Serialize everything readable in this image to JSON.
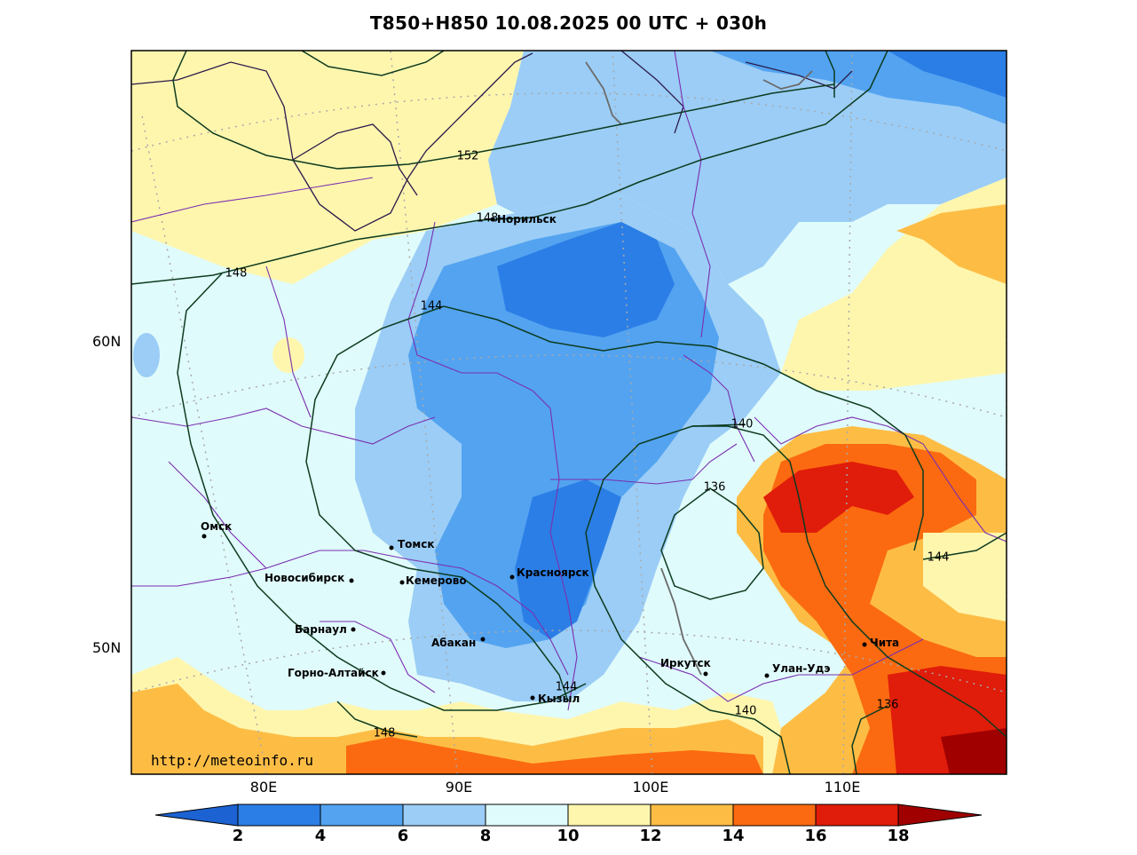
{
  "title": "T850+H850 10.08.2025 00 UTC + 030h",
  "credit": "http://meteoinfo.ru",
  "lat_labels": [
    "60N",
    "50N"
  ],
  "lon_labels": [
    "80E",
    "90E",
    "100E",
    "110E"
  ],
  "colorbar": {
    "ticks": [
      "2",
      "4",
      "6",
      "8",
      "10",
      "12",
      "14",
      "16",
      "18"
    ],
    "colors": [
      "#1c62d2",
      "#2b7ee6",
      "#53a3f0",
      "#9bcdf6",
      "#e0fbfb",
      "#fff6ae",
      "#fdbd45",
      "#fb6a10",
      "#e01c0a",
      "#a00000"
    ]
  },
  "contour_labels": [
    "152",
    "148",
    "148",
    "144",
    "140",
    "136",
    "144",
    "144",
    "140",
    "136",
    "148"
  ],
  "cities": [
    {
      "name": "Норильск"
    },
    {
      "name": "Омск"
    },
    {
      "name": "Томск"
    },
    {
      "name": "Новосибирск"
    },
    {
      "name": "Кемерово"
    },
    {
      "name": "Красноярск"
    },
    {
      "name": "Барнаул"
    },
    {
      "name": "Абакан"
    },
    {
      "name": "Горно-Алтайск"
    },
    {
      "name": "Кызыл"
    },
    {
      "name": "Иркутск"
    },
    {
      "name": "Улан-Удэ"
    },
    {
      "name": "Чита"
    }
  ]
}
